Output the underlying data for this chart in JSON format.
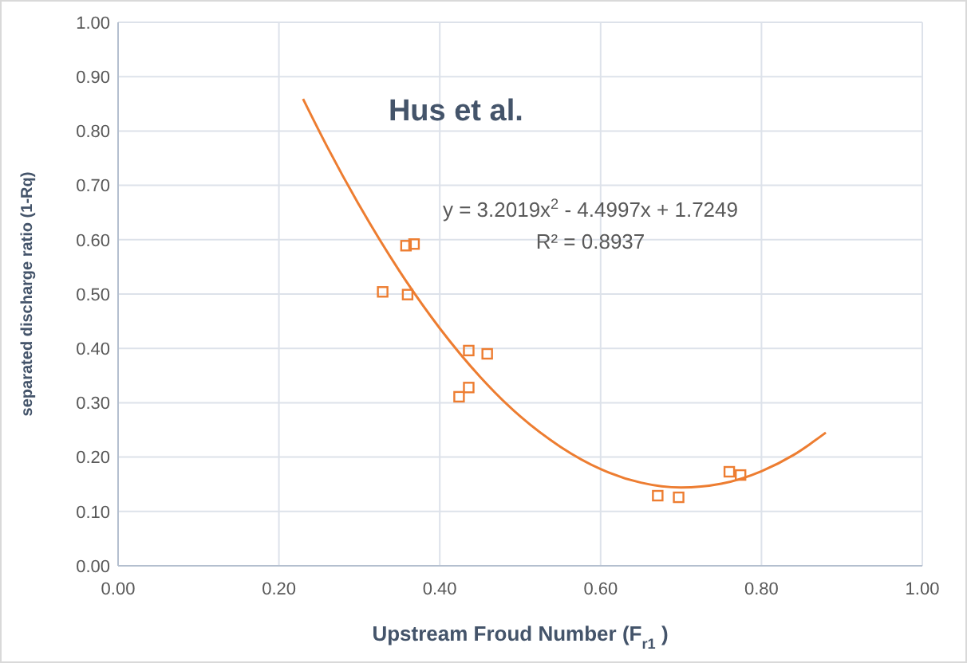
{
  "chart_data": {
    "type": "scatter",
    "title": "Hus et al.",
    "xlabel": "Upstream Froud Number (F$_{r1}$ )",
    "ylabel": "separated discharge ratio (1-Rq)",
    "annotations": [
      "y = 3.2019x$^{2}$ - 4.4997x + 1.7249",
      "R² = 0.8937"
    ],
    "xlim": [
      0,
      1
    ],
    "xticks": [
      {
        "value": 0,
        "label": "0.00"
      },
      {
        "value": 0.2,
        "label": "0.20"
      },
      {
        "value": 0.4,
        "label": "0.40"
      },
      {
        "value": 0.6,
        "label": "0.60"
      },
      {
        "value": 0.8,
        "label": "0.80"
      },
      {
        "value": 1,
        "label": "1.00"
      }
    ],
    "ylim": [
      0,
      1
    ],
    "yticks": [
      {
        "value": 0,
        "label": "0.00"
      },
      {
        "value": 0.1,
        "label": "0.10"
      },
      {
        "value": 0.2,
        "label": "0.20"
      },
      {
        "value": 0.3,
        "label": "0.30"
      },
      {
        "value": 0.4,
        "label": "0.40"
      },
      {
        "value": 0.5,
        "label": "0.50"
      },
      {
        "value": 0.6,
        "label": "0.60"
      },
      {
        "value": 0.7,
        "label": "0.70"
      },
      {
        "value": 0.8,
        "label": "0.80"
      },
      {
        "value": 0.9,
        "label": "0.90"
      },
      {
        "value": 1,
        "label": "1.00"
      }
    ],
    "grid": true,
    "series": [
      {
        "marker": "square",
        "color": "#ed7d31",
        "x": [
          0.329,
          0.358,
          0.368,
          0.36,
          0.436,
          0.436,
          0.424,
          0.459,
          0.671,
          0.697,
          0.76,
          0.774
        ],
        "values": [
          0.504,
          0.589,
          0.592,
          0.499,
          0.396,
          0.328,
          0.311,
          0.39,
          0.129,
          0.126,
          0.173,
          0.167
        ]
      },
      {
        "type": "line",
        "marker": "none",
        "color": "#ed7d31",
        "x": [
          0.23,
          0.26,
          0.3,
          0.35,
          0.4,
          0.45,
          0.5,
          0.55,
          0.6,
          0.65,
          0.7,
          0.75,
          0.8,
          0.84,
          0.88
        ],
        "values": [
          0.859,
          0.771,
          0.663,
          0.542,
          0.437,
          0.348,
          0.275,
          0.219,
          0.178,
          0.153,
          0.144,
          0.151,
          0.174,
          0.204,
          0.245
        ]
      }
    ]
  }
}
